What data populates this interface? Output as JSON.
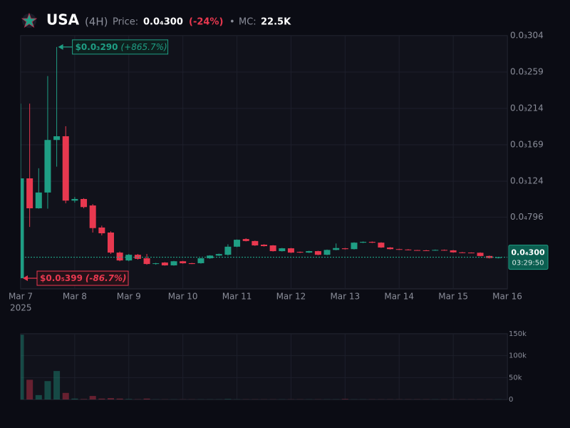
{
  "header": {
    "symbol": "USA",
    "interval": "(4H)",
    "price_label": "Price:",
    "price": "0.0₄300",
    "change": "(-24%)",
    "separator": "•",
    "mc_label": "MC:",
    "mc": "22.5K"
  },
  "chart_data": {
    "type": "candlestick",
    "x": [
      0,
      4,
      8,
      12,
      16,
      20,
      24,
      28,
      32,
      36,
      40,
      44,
      48,
      52,
      56,
      60,
      64,
      68,
      72,
      76,
      80,
      84,
      88,
      92,
      96,
      100,
      104,
      108,
      112,
      116,
      120,
      124,
      128,
      132,
      136,
      140,
      144,
      148,
      152,
      156,
      160,
      164,
      168,
      172,
      176,
      180,
      184,
      188,
      192,
      196,
      200,
      204,
      208,
      212
    ],
    "open": [
      4e-06,
      0.0001275,
      9.05e-05,
      0.00011,
      0.000175,
      0.0001796,
      0.0001,
      0.000102,
      9.4e-05,
      6.67e-05,
      6.05e-05,
      3.57e-05,
      2.6e-05,
      3.3e-05,
      2.87e-05,
      2.16e-05,
      2.34e-05,
      1.99e-05,
      2.5e-05,
      2.26e-05,
      2.26e-05,
      2.87e-05,
      3.2e-05,
      3.3e-05,
      4.3e-05,
      5.25e-05,
      5e-05,
      4.55e-05,
      4.46e-05,
      3.75e-05,
      4.1e-05,
      3.66e-05,
      3.57e-05,
      3.75e-05,
      3.3e-05,
      3.9e-05,
      4.1e-05,
      4e-05,
      4.8e-05,
      4.9e-05,
      4.8e-05,
      4.2e-05,
      4e-05,
      3.95e-05,
      3.88e-05,
      3.85e-05,
      3.82e-05,
      3.9e-05,
      3.85e-05,
      3.6e-05,
      3.57e-05,
      3.55e-05,
      3.15e-05,
      2.9e-05
    ],
    "high": [
      0.00022,
      0.00022,
      0.00014,
      0.000254,
      0.00029,
      0.000192,
      0.0001045,
      0.000103,
      9.57e-05,
      6.9e-05,
      6.2e-05,
      3.7e-05,
      3.4e-05,
      3.4e-05,
      3.4e-05,
      2.3e-05,
      2.4e-05,
      2.55e-05,
      2.55e-05,
      2.3e-05,
      2.9e-05,
      3.25e-05,
      3.45e-05,
      4.6e-05,
      5.2e-05,
      5.35e-05,
      5.05e-05,
      4.6e-05,
      4.5e-05,
      4.15e-05,
      4.15e-05,
      3.7e-05,
      3.8e-05,
      3.8e-05,
      3.95e-05,
      4.7e-05,
      4.15e-05,
      4.85e-05,
      4.95e-05,
      4.95e-05,
      4.85e-05,
      4.25e-05,
      4.05e-05,
      4e-05,
      3.9e-05,
      3.9e-05,
      3.95e-05,
      3.95e-05,
      3.9e-05,
      3.65e-05,
      3.6e-05,
      3.6e-05,
      3.2e-05,
      3.05e-05
    ],
    "low": [
      3.99e-06,
      6.75e-05,
      9e-05,
      9e-05,
      0.000142,
      9.67e-05,
      9.75e-05,
      9.05e-05,
      6.05e-05,
      5.7e-05,
      3.4e-05,
      2.5e-05,
      2.5e-05,
      2.7e-05,
      2.07e-05,
      2.07e-05,
      1.95e-05,
      1.95e-05,
      2.2e-05,
      2.15e-05,
      2.2e-05,
      2.8e-05,
      3.15e-05,
      3.2e-05,
      4.25e-05,
      4.95e-05,
      4.4e-05,
      4.32e-05,
      3.7e-05,
      3.7e-05,
      3.52e-05,
      3.52e-05,
      3.52e-05,
      3.25e-05,
      3.25e-05,
      3.85e-05,
      3.95e-05,
      3.95e-05,
      4.75e-05,
      4.75e-05,
      4.15e-05,
      3.95e-05,
      3.9e-05,
      3.85e-05,
      3.8e-05,
      3.8e-05,
      3.8e-05,
      3.8e-05,
      3.55e-05,
      3.52e-05,
      3.5e-05,
      3.1e-05,
      2.85e-05,
      2.85e-05
    ],
    "close": [
      0.0001275,
      9.05e-05,
      0.00011,
      0.000175,
      0.0001796,
      0.0001,
      0.000102,
      9.2e-05,
      6.6e-05,
      5.96e-05,
      3.57e-05,
      2.6e-05,
      3.3e-05,
      2.8e-05,
      2.16e-05,
      2.25e-05,
      1.99e-05,
      2.5e-05,
      2.25e-05,
      2.16e-05,
      2.87e-05,
      3.2e-05,
      3.39e-05,
      4.3e-05,
      5.16e-05,
      5e-05,
      4.46e-05,
      4.37e-05,
      3.75e-05,
      4.1e-05,
      3.57e-05,
      3.57e-05,
      3.75e-05,
      3.3e-05,
      3.9e-05,
      4.13e-05,
      4e-05,
      4.8e-05,
      4.9e-05,
      4.8e-05,
      4.2e-05,
      4e-05,
      3.95e-05,
      3.88e-05,
      3.85e-05,
      3.82e-05,
      3.9e-05,
      3.85e-05,
      3.6e-05,
      3.57e-05,
      3.55e-05,
      3.15e-05,
      2.9e-05,
      3e-05
    ],
    "volume": [
      148000,
      45000,
      10000,
      42000,
      65000,
      15000,
      2000,
      1000,
      8000,
      2000,
      3000,
      2000,
      1000,
      500,
      2000,
      300,
      300,
      300,
      300,
      300,
      300,
      300,
      300,
      1000,
      300,
      300,
      300,
      300,
      300,
      300,
      300,
      300,
      300,
      300,
      300,
      300,
      1000,
      300,
      300,
      300,
      300,
      300,
      300,
      300,
      300,
      300,
      300,
      300,
      300,
      300,
      300,
      300,
      300,
      300
    ],
    "up_color": "#1f9e84",
    "down_color": "#e8384f",
    "xlim": [
      0,
      216
    ],
    "xticks": [
      {
        "value": 0,
        "label": "Mar 7"
      },
      {
        "value": 24,
        "label": "Mar 8"
      },
      {
        "value": 48,
        "label": "Mar 9"
      },
      {
        "value": 72,
        "label": "Mar 10"
      },
      {
        "value": 96,
        "label": "Mar 11"
      },
      {
        "value": 120,
        "label": "Mar 12"
      },
      {
        "value": 144,
        "label": "Mar 13"
      },
      {
        "value": 168,
        "label": "Mar 14"
      },
      {
        "value": 192,
        "label": "Mar 15"
      },
      {
        "value": 216,
        "label": "Mar 16"
      }
    ],
    "year_label": "2025",
    "ylim": [
      -9.2e-06,
      0.000304
    ],
    "yticks": [
      {
        "value": 7.96e-05,
        "label": "0.0₄796"
      },
      {
        "value": 0.000124,
        "label": "0.0₃124"
      },
      {
        "value": 0.000169,
        "label": "0.0₃169"
      },
      {
        "value": 0.000214,
        "label": "0.0₃214"
      },
      {
        "value": 0.000259,
        "label": "0.0₃259"
      },
      {
        "value": 0.000304,
        "label": "0.0₃304"
      }
    ],
    "vlim": [
      0,
      150000
    ],
    "vticks": [
      0,
      {
        "value": 50000,
        "label": "50k"
      },
      {
        "value": 100000,
        "label": "100k"
      },
      {
        "value": 150000,
        "label": "150k"
      }
    ],
    "grid": true,
    "last_price": {
      "value": 3e-05,
      "label": "0.0₄300",
      "countdown": "03:29:50"
    },
    "annotations": [
      {
        "text": "$0.0₃290",
        "change": "(+865.7%)",
        "value": 0.00029,
        "x": 16
      },
      {
        "text": "$0.0₅399",
        "change": "(-86.7%)",
        "value": 3.99e-06,
        "x": 0
      }
    ]
  }
}
